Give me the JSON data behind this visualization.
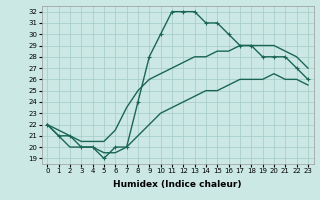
{
  "xlabel": "Humidex (Indice chaleur)",
  "x": [
    0,
    1,
    2,
    3,
    4,
    5,
    6,
    7,
    8,
    9,
    10,
    11,
    12,
    13,
    14,
    15,
    16,
    17,
    18,
    19,
    20,
    21,
    22,
    23
  ],
  "y_max": [
    22,
    21,
    21,
    20,
    20,
    19,
    20,
    20,
    24,
    28,
    30,
    32,
    32,
    32,
    31,
    31,
    30,
    29,
    29,
    28,
    28,
    28,
    27,
    26
  ],
  "y_mean": [
    22,
    21.5,
    21,
    20.5,
    20.5,
    20.5,
    21.5,
    23.5,
    25,
    26,
    26.5,
    27,
    27.5,
    28,
    28,
    28.5,
    28.5,
    29,
    29,
    29,
    29,
    28.5,
    28,
    27
  ],
  "y_min": [
    22,
    21,
    20,
    20,
    20,
    19.5,
    19.5,
    20,
    21,
    22,
    23,
    23.5,
    24,
    24.5,
    25,
    25,
    25.5,
    26,
    26,
    26,
    26.5,
    26,
    26,
    25.5
  ],
  "ylim": [
    18.5,
    32.5
  ],
  "yticks": [
    19,
    20,
    21,
    22,
    23,
    24,
    25,
    26,
    27,
    28,
    29,
    30,
    31,
    32
  ],
  "xticks": [
    0,
    1,
    2,
    3,
    4,
    5,
    6,
    7,
    8,
    9,
    10,
    11,
    12,
    13,
    14,
    15,
    16,
    17,
    18,
    19,
    20,
    21,
    22,
    23
  ],
  "bg_color": "#cce8e4",
  "grid_color": "#aacfcb",
  "line_color": "#1a6655",
  "line_width": 1.0,
  "marker": "+",
  "marker_size": 3.5,
  "tick_fontsize": 5.0,
  "xlabel_fontsize": 6.5
}
